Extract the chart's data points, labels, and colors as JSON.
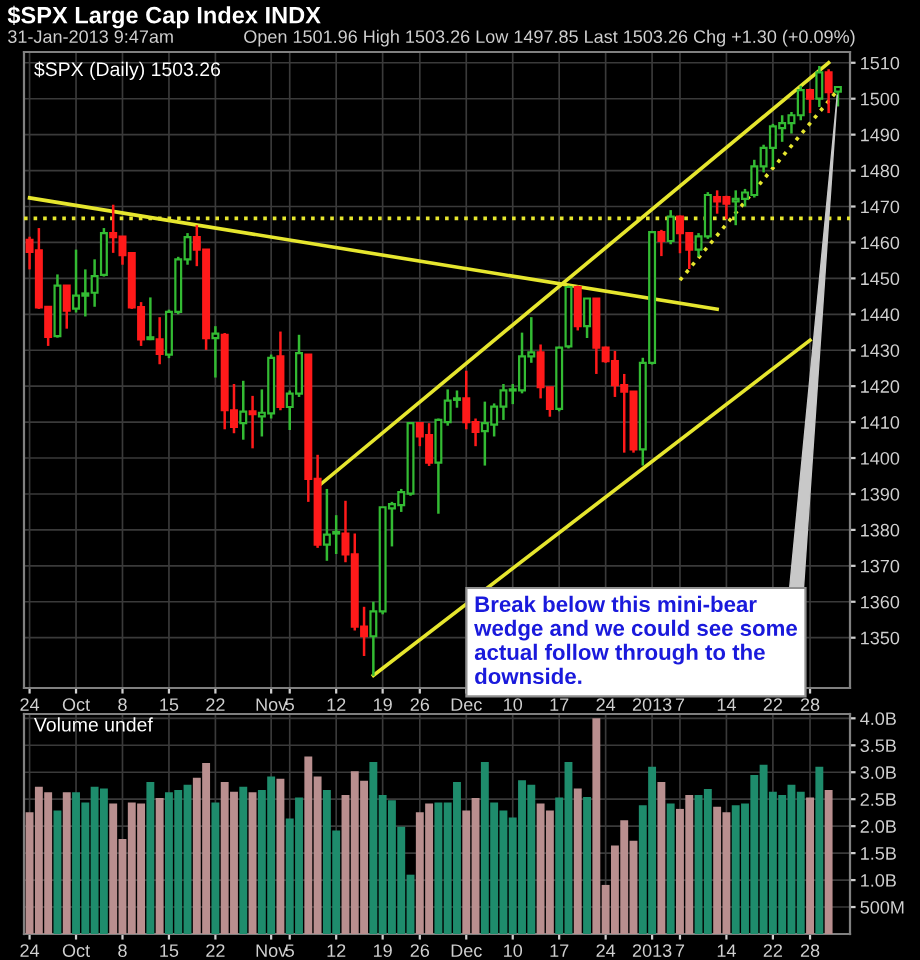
{
  "chart_data": [
    {
      "type": "candlestick",
      "title": "$SPX Large Cap Index INDX",
      "subtitle": "31-Jan-2013 9:47am",
      "annotations": [
        "Open 1501.96 High 1503.26 Low 1497.85 Last 1503.26 Chg +1.30 (+0.09%)",
        "$SPX (Daily) 1503.26",
        "Break below this mini-bear\nwedge and we could see some\nactual follow through to the\ndownside."
      ],
      "categories": [
        "24",
        null,
        null,
        null,
        null,
        "Oct",
        null,
        null,
        null,
        null,
        "8",
        null,
        null,
        null,
        null,
        "15",
        null,
        null,
        null,
        null,
        "22",
        null,
        null,
        null,
        null,
        null,
        "Nov",
        null,
        "5",
        null,
        null,
        null,
        null,
        "12",
        null,
        null,
        null,
        null,
        "19",
        null,
        null,
        null,
        "26",
        null,
        null,
        null,
        null,
        "Dec",
        null,
        null,
        null,
        null,
        "10",
        null,
        null,
        null,
        null,
        "17",
        null,
        null,
        null,
        null,
        "24",
        null,
        null,
        null,
        null,
        "2013",
        null,
        null,
        "7",
        null,
        null,
        null,
        null,
        "14",
        null,
        null,
        null,
        null,
        "22",
        null,
        null,
        null,
        "28",
        null,
        null,
        null
      ],
      "ohlc": [
        [
          1460.7,
          1461.6,
          1452.5,
          1457.4
        ],
        [
          1457.8,
          1464.0,
          1441.5,
          1441.9
        ],
        [
          1442.1,
          1442.1,
          1431.2,
          1433.7
        ],
        [
          1433.9,
          1451.1,
          1433.5,
          1448.0
        ],
        [
          1448.0,
          1448.0,
          1436.0,
          1441.0
        ],
        [
          1441.6,
          1458.0,
          1440.5,
          1445.2
        ],
        [
          1445.2,
          1452.5,
          1439.4,
          1445.8
        ],
        [
          1446.0,
          1455.3,
          1442.1,
          1450.6
        ],
        [
          1451.0,
          1464.0,
          1450.5,
          1462.6
        ],
        [
          1462.6,
          1470.5,
          1457.1,
          1461.5
        ],
        [
          1461.6,
          1461.6,
          1453.8,
          1456.5
        ],
        [
          1457.0,
          1457.0,
          1441.5,
          1441.9
        ],
        [
          1442.0,
          1443.4,
          1431.2,
          1433.0
        ],
        [
          1433.1,
          1444.7,
          1432.8,
          1433.6
        ],
        [
          1433.0,
          1439.2,
          1426.1,
          1429.0
        ],
        [
          1428.8,
          1441.3,
          1427.8,
          1440.7
        ],
        [
          1440.7,
          1456.0,
          1440.0,
          1455.3
        ],
        [
          1455.3,
          1462.6,
          1453.8,
          1461.5
        ],
        [
          1461.5,
          1464.8,
          1453.4,
          1458.0
        ],
        [
          1458.0,
          1458.0,
          1430.1,
          1433.4
        ],
        [
          1433.4,
          1436.7,
          1422.4,
          1434.6
        ],
        [
          1434.3,
          1434.8,
          1408.0,
          1413.3
        ],
        [
          1413.3,
          1420.6,
          1406.9,
          1408.7
        ],
        [
          1409.7,
          1421.5,
          1405.1,
          1412.9
        ],
        [
          1413.0,
          1417.3,
          1402.7,
          1412.2
        ],
        [
          1411.6,
          1419.1,
          1406.0,
          1412.6
        ],
        [
          1412.4,
          1428.8,
          1411.0,
          1427.9
        ],
        [
          1428.3,
          1435.2,
          1413.3,
          1414.2
        ],
        [
          1414.2,
          1418.8,
          1407.8,
          1417.9
        ],
        [
          1417.9,
          1434.3,
          1417.0,
          1429.2
        ],
        [
          1428.8,
          1428.8,
          1387.8,
          1394.2
        ],
        [
          1394.2,
          1400.9,
          1375.0,
          1375.9
        ],
        [
          1375.9,
          1391.4,
          1371.4,
          1378.7
        ],
        [
          1379.0,
          1384.1,
          1373.3,
          1379.4
        ],
        [
          1379.0,
          1388.1,
          1371.0,
          1373.2
        ],
        [
          1373.2,
          1379.0,
          1352.0,
          1353.1
        ],
        [
          1353.1,
          1358.6,
          1344.9,
          1350.4
        ],
        [
          1350.4,
          1360.0,
          1339.4,
          1357.3
        ],
        [
          1357.3,
          1386.3,
          1356.5,
          1386.3
        ],
        [
          1386.0,
          1387.8,
          1375.4,
          1387.2
        ],
        [
          1386.9,
          1391.4,
          1385.0,
          1390.5
        ],
        [
          1390.1,
          1409.7,
          1389.5,
          1409.7
        ],
        [
          1409.7,
          1409.7,
          1403.3,
          1406.0
        ],
        [
          1406.4,
          1409.7,
          1397.8,
          1398.7
        ],
        [
          1398.7,
          1411.0,
          1384.5,
          1410.6
        ],
        [
          1410.0,
          1419.1,
          1409.0,
          1416.0
        ],
        [
          1416.2,
          1418.8,
          1414.0,
          1416.6
        ],
        [
          1416.6,
          1424.3,
          1408.0,
          1410.0
        ],
        [
          1410.0,
          1411.0,
          1403.3,
          1407.3
        ],
        [
          1407.5,
          1415.7,
          1397.9,
          1409.7
        ],
        [
          1409.3,
          1415.2,
          1406.0,
          1414.3
        ],
        [
          1414.3,
          1420.6,
          1410.6,
          1418.8
        ],
        [
          1418.8,
          1420.6,
          1415.0,
          1419.1
        ],
        [
          1418.8,
          1434.9,
          1418.0,
          1428.3
        ],
        [
          1428.3,
          1439.2,
          1426.5,
          1429.4
        ],
        [
          1429.4,
          1431.6,
          1416.6,
          1419.7
        ],
        [
          1419.7,
          1419.7,
          1411.5,
          1413.7
        ],
        [
          1413.7,
          1431.0,
          1413.0,
          1430.7
        ],
        [
          1431.1,
          1448.0,
          1430.5,
          1447.6
        ],
        [
          1447.6,
          1448.0,
          1435.5,
          1436.7
        ],
        [
          1436.7,
          1444.4,
          1433.4,
          1444.4
        ],
        [
          1444.4,
          1444.4,
          1423.4,
          1430.7
        ],
        [
          1430.7,
          1431.0,
          1426.5,
          1427.0
        ],
        [
          1427.0,
          1429.8,
          1417.0,
          1420.3
        ],
        [
          1420.3,
          1423.4,
          1401.5,
          1418.5
        ],
        [
          1418.5,
          1418.5,
          1401.5,
          1402.4
        ],
        [
          1402.4,
          1427.9,
          1397.9,
          1426.5
        ],
        [
          1426.5,
          1463.0,
          1426.0,
          1462.9
        ],
        [
          1462.9,
          1463.5,
          1456.2,
          1460.4
        ],
        [
          1460.4,
          1469.0,
          1459.5,
          1467.2
        ],
        [
          1467.2,
          1467.5,
          1457.0,
          1462.6
        ],
        [
          1462.6,
          1462.6,
          1452.6,
          1458.0
        ],
        [
          1458.0,
          1462.6,
          1456.0,
          1461.7
        ],
        [
          1461.7,
          1474.0,
          1461.0,
          1473.2
        ],
        [
          1472.6,
          1474.5,
          1468.0,
          1471.4
        ],
        [
          1472.6,
          1473.0,
          1466.5,
          1470.8
        ],
        [
          1471.4,
          1474.5,
          1464.8,
          1472.1
        ],
        [
          1472.1,
          1474.9,
          1470.0,
          1473.9
        ],
        [
          1473.2,
          1483.0,
          1472.5,
          1481.2
        ],
        [
          1481.2,
          1487.2,
          1479.5,
          1486.3
        ],
        [
          1486.3,
          1493.0,
          1481.0,
          1492.3
        ],
        [
          1491.8,
          1495.4,
          1488.0,
          1493.2
        ],
        [
          1493.2,
          1496.3,
          1490.3,
          1495.4
        ],
        [
          1495.4,
          1503.6,
          1494.0,
          1502.4
        ],
        [
          1502.4,
          1502.8,
          1496.0,
          1500.0
        ],
        [
          1500.0,
          1509.1,
          1497.7,
          1507.3
        ],
        [
          1507.3,
          1508.2,
          1496.0,
          1501.8
        ],
        [
          1501.96,
          1503.26,
          1497.85,
          1503.26
        ]
      ],
      "colors": [
        "#ff1a1a",
        "#ff1a1a",
        "#ff1a1a",
        "#33bb33",
        "#ff1a1a",
        "#33bb33",
        "#33bb33",
        "#33bb33",
        "#33bb33",
        "#ff1a1a",
        "#ff1a1a",
        "#ff1a1a",
        "#ff1a1a",
        "#33bb33",
        "#ff1a1a",
        "#33bb33",
        "#33bb33",
        "#33bb33",
        "#ff1a1a",
        "#ff1a1a",
        "#33bb33",
        "#ff1a1a",
        "#ff1a1a",
        "#33bb33",
        "#ff1a1a",
        "#33bb33",
        "#33bb33",
        "#ff1a1a",
        "#33bb33",
        "#33bb33",
        "#ff1a1a",
        "#ff1a1a",
        "#33bb33",
        "#33bb33",
        "#ff1a1a",
        "#ff1a1a",
        "#ff1a1a",
        "#33bb33",
        "#33bb33",
        "#33bb33",
        "#33bb33",
        "#33bb33",
        "#ff1a1a",
        "#ff1a1a",
        "#33bb33",
        "#33bb33",
        "#33bb33",
        "#ff1a1a",
        "#ff1a1a",
        "#33bb33",
        "#33bb33",
        "#33bb33",
        "#33bb33",
        "#33bb33",
        "#33bb33",
        "#ff1a1a",
        "#ff1a1a",
        "#33bb33",
        "#33bb33",
        "#ff1a1a",
        "#33bb33",
        "#ff1a1a",
        "#ff1a1a",
        "#ff1a1a",
        "#ff1a1a",
        "#ff1a1a",
        "#33bb33",
        "#33bb33",
        "#ff1a1a",
        "#33bb33",
        "#ff1a1a",
        "#ff1a1a",
        "#33bb33",
        "#33bb33",
        "#ff1a1a",
        "#ff1a1a",
        "#33bb33",
        "#33bb33",
        "#33bb33",
        "#33bb33",
        "#33bb33",
        "#33bb33",
        "#33bb33",
        "#33bb33",
        "#ff1a1a",
        "#33bb33",
        "#ff1a1a",
        "#33bb33"
      ],
      "series": [
        {
          "type": "line",
          "color": "#e6e62e",
          "line_style": "solid",
          "values": [
            1472.4,
            null,
            null,
            null,
            null,
            null,
            null,
            null,
            null,
            null,
            null,
            null,
            null,
            null,
            null,
            null,
            null,
            null,
            null,
            null,
            null,
            null,
            null,
            null,
            null,
            null,
            null,
            null,
            null,
            null,
            null,
            null,
            null,
            null,
            null,
            null,
            null,
            null,
            null,
            null,
            null,
            null,
            null,
            null,
            null,
            null,
            null,
            null,
            null,
            null,
            null,
            null,
            null,
            null,
            null,
            null,
            null,
            null,
            null,
            null,
            null,
            null,
            null,
            null,
            null,
            null,
            null,
            null,
            null,
            null,
            null,
            null,
            null,
            null,
            1441.4,
            null,
            null,
            null,
            null,
            null,
            null,
            null,
            null,
            null,
            null,
            null,
            null,
            null
          ]
        },
        {
          "type": "line",
          "color": "#e6e62e",
          "line_style": "solid",
          "values": [
            null,
            null,
            null,
            null,
            null,
            null,
            null,
            null,
            null,
            null,
            null,
            null,
            null,
            null,
            null,
            null,
            null,
            null,
            null,
            null,
            null,
            null,
            null,
            null,
            null,
            null,
            null,
            null,
            null,
            null,
            null,
            1392,
            null,
            null,
            null,
            null,
            null,
            null,
            null,
            null,
            null,
            null,
            null,
            null,
            null,
            null,
            null,
            null,
            null,
            null,
            null,
            null,
            null,
            null,
            null,
            null,
            null,
            null,
            null,
            null,
            null,
            null,
            null,
            null,
            null,
            null,
            null,
            null,
            null,
            null,
            null,
            null,
            null,
            null,
            null,
            null,
            null,
            null,
            null,
            null,
            null,
            null,
            null,
            null,
            null,
            null,
            1510,
            null
          ]
        },
        {
          "type": "line",
          "color": "#e6e62e",
          "line_style": "solid",
          "values": [
            null,
            null,
            null,
            null,
            null,
            null,
            null,
            null,
            null,
            null,
            null,
            null,
            null,
            null,
            null,
            null,
            null,
            null,
            null,
            null,
            null,
            null,
            null,
            null,
            null,
            null,
            null,
            null,
            null,
            null,
            null,
            null,
            null,
            null,
            null,
            null,
            null,
            1339.5,
            null,
            null,
            null,
            null,
            null,
            null,
            null,
            null,
            null,
            null,
            null,
            null,
            null,
            null,
            null,
            null,
            null,
            null,
            null,
            null,
            null,
            null,
            null,
            null,
            null,
            null,
            null,
            null,
            null,
            null,
            null,
            null,
            null,
            null,
            null,
            null,
            null,
            null,
            null,
            null,
            null,
            null,
            null,
            null,
            null,
            null,
            1432.8,
            null,
            null,
            null
          ]
        },
        {
          "type": "line",
          "color": "#e6e62e",
          "line_style": "dotted",
          "values": [
            null,
            null,
            null,
            null,
            null,
            null,
            null,
            null,
            null,
            null,
            null,
            null,
            null,
            null,
            null,
            null,
            null,
            null,
            null,
            null,
            null,
            null,
            null,
            null,
            null,
            null,
            null,
            null,
            null,
            null,
            null,
            null,
            null,
            null,
            null,
            null,
            null,
            null,
            null,
            null,
            null,
            null,
            null,
            null,
            null,
            null,
            null,
            null,
            null,
            null,
            null,
            null,
            null,
            null,
            null,
            null,
            null,
            null,
            null,
            null,
            null,
            null,
            null,
            null,
            null,
            null,
            null,
            null,
            null,
            null,
            1449.5,
            null,
            null,
            null,
            null,
            null,
            null,
            null,
            null,
            null,
            null,
            null,
            null,
            null,
            null,
            null,
            null,
            1502.5
          ]
        }
      ],
      "ref_lines": [
        {
          "axis": "y",
          "value": 1466.7,
          "color": "#e6e62e",
          "line_style": "dotted"
        }
      ],
      "ylim": [
        1336,
        1513
      ],
      "yticks": [
        1350,
        1360,
        1370,
        1380,
        1390,
        1400,
        1410,
        1420,
        1430,
        1440,
        1450,
        1460,
        1470,
        1480,
        1490,
        1500,
        1510
      ],
      "grid": true
    },
    {
      "type": "bar",
      "annotations": [
        "Volume undef"
      ],
      "categories": [
        "24",
        null,
        null,
        null,
        null,
        "Oct",
        null,
        null,
        null,
        null,
        "8",
        null,
        null,
        null,
        null,
        "15",
        null,
        null,
        null,
        null,
        "22",
        null,
        null,
        null,
        null,
        null,
        "Nov",
        null,
        "5",
        null,
        null,
        null,
        null,
        "12",
        null,
        null,
        null,
        null,
        "19",
        null,
        null,
        null,
        "26",
        null,
        null,
        null,
        null,
        "Dec",
        null,
        null,
        null,
        null,
        "10",
        null,
        null,
        null,
        null,
        "17",
        null,
        null,
        null,
        null,
        "24",
        null,
        null,
        null,
        null,
        "2013",
        null,
        null,
        "7",
        null,
        null,
        null,
        null,
        "14",
        null,
        null,
        null,
        null,
        "22",
        null,
        null,
        null,
        "28",
        null,
        null,
        null
      ],
      "values": [
        2260000000.0,
        2730000000.0,
        2630000000.0,
        2290000000.0,
        2630000000.0,
        2630000000.0,
        2440000000.0,
        2730000000.0,
        2700000000.0,
        2420000000.0,
        1760000000.0,
        2440000000.0,
        2420000000.0,
        2820000000.0,
        2520000000.0,
        2630000000.0,
        2670000000.0,
        2770000000.0,
        2900000000.0,
        3170000000.0,
        2440000000.0,
        2820000000.0,
        2640000000.0,
        2730000000.0,
        2630000000.0,
        2670000000.0,
        2920000000.0,
        2880000000.0,
        2140000000.0,
        2530000000.0,
        3290000000.0,
        2920000000.0,
        2670000000.0,
        1920000000.0,
        2580000000.0,
        3020000000.0,
        2840000000.0,
        3190000000.0,
        2580000000.0,
        2480000000.0,
        1990000000.0,
        1100000000.0,
        2260000000.0,
        2420000000.0,
        2440000000.0,
        2440000000.0,
        2820000000.0,
        2290000000.0,
        2520000000.0,
        3190000000.0,
        2440000000.0,
        2290000000.0,
        2160000000.0,
        2850000000.0,
        2770000000.0,
        2420000000.0,
        2290000000.0,
        2530000000.0,
        3190000000.0,
        2700000000.0,
        2540000000.0,
        4000000000.0,
        910000000.0,
        1640000000.0,
        2110000000.0,
        1730000000.0,
        2390000000.0,
        3100000000.0,
        2820000000.0,
        2420000000.0,
        2320000000.0,
        2580000000.0,
        2580000000.0,
        2690000000.0,
        2360000000.0,
        2260000000.0,
        2390000000.0,
        2420000000.0,
        2950000000.0,
        3140000000.0,
        2640000000.0,
        2580000000.0,
        2770000000.0,
        2640000000.0,
        2530000000.0,
        3100000000.0,
        2670000000.0,
        null
      ],
      "colors": [
        "#b98f8f",
        "#b98f8f",
        "#b98f8f",
        "#1e8c6c",
        "#b98f8f",
        "#1e8c6c",
        "#1e8c6c",
        "#1e8c6c",
        "#1e8c6c",
        "#b98f8f",
        "#b98f8f",
        "#b98f8f",
        "#b98f8f",
        "#1e8c6c",
        "#b98f8f",
        "#1e8c6c",
        "#1e8c6c",
        "#1e8c6c",
        "#b98f8f",
        "#b98f8f",
        "#1e8c6c",
        "#b98f8f",
        "#b98f8f",
        "#1e8c6c",
        "#b98f8f",
        "#1e8c6c",
        "#1e8c6c",
        "#b98f8f",
        "#1e8c6c",
        "#1e8c6c",
        "#b98f8f",
        "#b98f8f",
        "#1e8c6c",
        "#1e8c6c",
        "#b98f8f",
        "#b98f8f",
        "#b98f8f",
        "#1e8c6c",
        "#1e8c6c",
        "#1e8c6c",
        "#1e8c6c",
        "#1e8c6c",
        "#b98f8f",
        "#b98f8f",
        "#1e8c6c",
        "#1e8c6c",
        "#1e8c6c",
        "#b98f8f",
        "#b98f8f",
        "#1e8c6c",
        "#1e8c6c",
        "#1e8c6c",
        "#1e8c6c",
        "#1e8c6c",
        "#1e8c6c",
        "#b98f8f",
        "#b98f8f",
        "#1e8c6c",
        "#1e8c6c",
        "#b98f8f",
        "#1e8c6c",
        "#b98f8f",
        "#b98f8f",
        "#b98f8f",
        "#b98f8f",
        "#b98f8f",
        "#1e8c6c",
        "#1e8c6c",
        "#b98f8f",
        "#1e8c6c",
        "#b98f8f",
        "#b98f8f",
        "#1e8c6c",
        "#1e8c6c",
        "#b98f8f",
        "#b98f8f",
        "#1e8c6c",
        "#1e8c6c",
        "#1e8c6c",
        "#1e8c6c",
        "#1e8c6c",
        "#1e8c6c",
        "#1e8c6c",
        "#1e8c6c",
        "#b98f8f",
        "#1e8c6c",
        "#b98f8f",
        "#1e8c6c"
      ],
      "ylim": [
        0,
        4080000000.0
      ],
      "yticks": [
        {
          "value": 500000000.0,
          "label": "500M"
        },
        {
          "value": 1000000000.0,
          "label": "1.0B"
        },
        {
          "value": 1500000000.0,
          "label": "1.5B"
        },
        {
          "value": 2000000000.0,
          "label": "2.0B"
        },
        {
          "value": 2500000000.0,
          "label": "2.5B"
        },
        {
          "value": 3000000000.0,
          "label": "3.0B"
        },
        {
          "value": 3500000000.0,
          "label": "3.5B"
        },
        {
          "value": 4000000000.0,
          "label": "4.0B"
        }
      ],
      "grid": true
    }
  ]
}
